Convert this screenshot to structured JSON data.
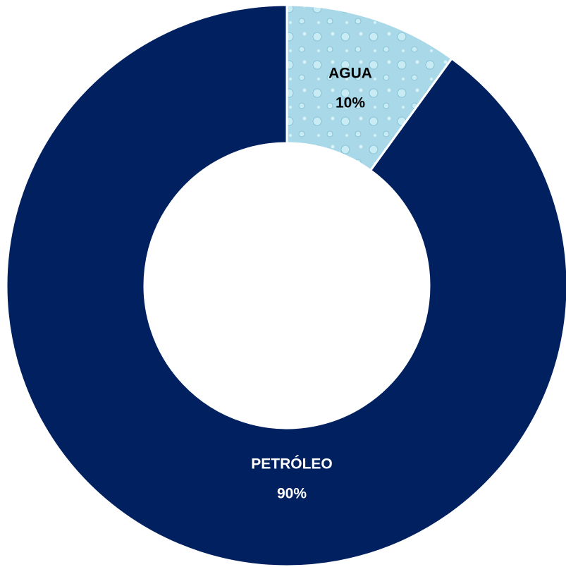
{
  "chart_data": {
    "type": "pie",
    "categories": [
      "AGUA",
      "PETRÓLEO"
    ],
    "values": [
      10,
      90
    ],
    "value_labels": [
      "10%",
      "90%"
    ],
    "colors": [
      "#a9d9e8",
      "#002060"
    ],
    "donut": true
  }
}
